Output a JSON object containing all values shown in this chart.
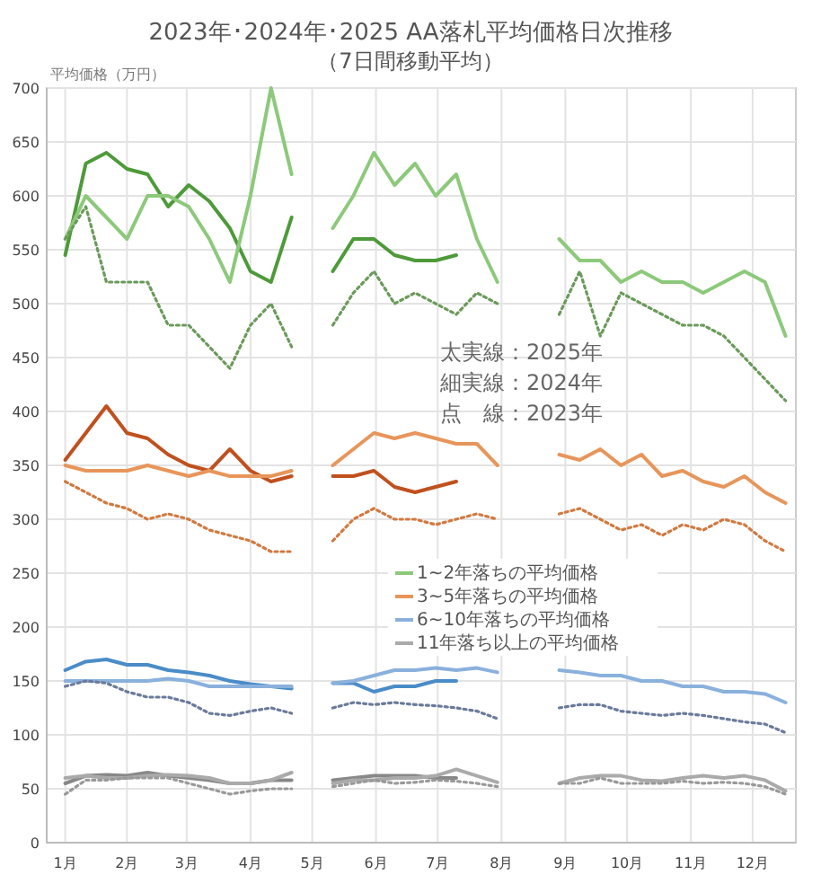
{
  "chart_data": {
    "type": "line",
    "title": "2023年･2024年･2025  AA落札平均価格日次推移",
    "subtitle": "（7日間移動平均）",
    "ylabel": "平均価格（万円）",
    "x": [
      "--01-10",
      "--01-20",
      "--01-30",
      "--02-09",
      "--02-19",
      "--03-01",
      "--03-11",
      "--03-21",
      "--03-31",
      "--04-10",
      "--04-20",
      "--04-30",
      "--05-10",
      "--05-20",
      "--05-30",
      "--06-09",
      "--06-19",
      "--06-29",
      "--07-09",
      "--07-19",
      "--07-29",
      "--08-08",
      "--08-18",
      "--08-28",
      "--09-07",
      "--09-17",
      "--09-27",
      "--10-07",
      "--10-17",
      "--10-27",
      "--11-06",
      "--11-16",
      "--11-26",
      "--12-06",
      "--12-16",
      "--12-26"
    ],
    "xlim": [
      "--01-01",
      "--12-31"
    ],
    "xticks": [
      {
        "value": "--01-10",
        "label": "1月"
      },
      {
        "value": "--02-09",
        "label": "2月"
      },
      {
        "value": "--03-10",
        "label": "3月"
      },
      {
        "value": "--04-10",
        "label": "4月"
      },
      {
        "value": "--05-10",
        "label": "5月"
      },
      {
        "value": "--06-10",
        "label": "6月"
      },
      {
        "value": "--07-10",
        "label": "7月"
      },
      {
        "value": "--08-10",
        "label": "8月"
      },
      {
        "value": "--09-10",
        "label": "9月"
      },
      {
        "value": "--10-10",
        "label": "10月"
      },
      {
        "value": "--11-10",
        "label": "11月"
      },
      {
        "value": "--12-10",
        "label": "12月"
      }
    ],
    "ylim": [
      0,
      700
    ],
    "yticks": [
      0,
      50,
      100,
      150,
      200,
      250,
      300,
      350,
      400,
      450,
      500,
      550,
      600,
      650,
      700
    ],
    "grid": true,
    "legend": "bottom right",
    "annotations": [
      "太実線：2025年",
      "細実線：2024年",
      "点　線：2023年"
    ],
    "series": [
      {
        "color": "#4e9a3a",
        "line_style": "solid",
        "values": [
          545,
          630,
          640,
          625,
          620,
          590,
          610,
          595,
          570,
          530,
          520,
          580,
          null,
          530,
          560,
          560,
          545,
          540,
          540,
          545,
          null,
          null,
          null,
          null,
          null,
          null,
          null,
          null,
          null,
          null,
          null,
          null,
          null,
          null,
          null,
          null
        ]
      },
      {
        "name": "1~2年落ちの平均価格",
        "color": "#8cc97a",
        "line_style": "solid",
        "values": [
          560,
          600,
          580,
          560,
          600,
          600,
          590,
          560,
          520,
          600,
          700,
          620,
          null,
          570,
          600,
          640,
          610,
          630,
          600,
          620,
          560,
          520,
          null,
          null,
          560,
          540,
          540,
          520,
          530,
          520,
          520,
          510,
          520,
          530,
          520,
          470
        ]
      },
      {
        "color": "#6a9a5a",
        "line_style": "dotted",
        "values": [
          560,
          590,
          520,
          520,
          520,
          480,
          480,
          460,
          440,
          480,
          500,
          460,
          null,
          480,
          510,
          530,
          500,
          510,
          500,
          490,
          510,
          500,
          null,
          null,
          490,
          530,
          470,
          510,
          500,
          490,
          480,
          480,
          470,
          450,
          430,
          410
        ]
      },
      {
        "color": "#c0501e",
        "line_style": "solid",
        "values": [
          355,
          380,
          405,
          380,
          375,
          360,
          350,
          345,
          365,
          345,
          335,
          340,
          null,
          340,
          340,
          345,
          330,
          325,
          330,
          335,
          null,
          null,
          null,
          null,
          null,
          null,
          null,
          null,
          null,
          null,
          null,
          null,
          null,
          null,
          null,
          null
        ]
      },
      {
        "name": "3~5年落ちの平均価格",
        "color": "#e8955a",
        "line_style": "solid",
        "values": [
          350,
          345,
          345,
          345,
          350,
          345,
          340,
          345,
          340,
          340,
          340,
          345,
          null,
          350,
          365,
          380,
          375,
          380,
          375,
          370,
          370,
          350,
          null,
          null,
          360,
          355,
          365,
          350,
          360,
          340,
          345,
          335,
          330,
          340,
          325,
          315
        ]
      },
      {
        "color": "#d07a40",
        "line_style": "dotted",
        "values": [
          335,
          325,
          315,
          310,
          300,
          305,
          300,
          290,
          285,
          280,
          270,
          270,
          null,
          280,
          300,
          310,
          300,
          300,
          295,
          300,
          305,
          300,
          null,
          null,
          305,
          310,
          300,
          290,
          295,
          285,
          295,
          290,
          300,
          295,
          280,
          270
        ]
      },
      {
        "color": "#4a8cc8",
        "line_style": "solid",
        "values": [
          160,
          168,
          170,
          165,
          165,
          160,
          158,
          155,
          150,
          147,
          145,
          143,
          null,
          148,
          148,
          140,
          145,
          145,
          150,
          150,
          null,
          null,
          null,
          null,
          null,
          null,
          null,
          null,
          null,
          null,
          null,
          null,
          null,
          null,
          null,
          null
        ]
      },
      {
        "name": "6~10年落ちの平均価格",
        "color": "#8ab0dc",
        "line_style": "solid",
        "values": [
          150,
          150,
          150,
          150,
          150,
          152,
          150,
          145,
          145,
          145,
          145,
          145,
          null,
          148,
          150,
          155,
          160,
          160,
          162,
          160,
          162,
          158,
          null,
          null,
          160,
          158,
          155,
          155,
          150,
          150,
          145,
          145,
          140,
          140,
          138,
          130
        ]
      },
      {
        "color": "#6a7a9a",
        "line_style": "dotted",
        "values": [
          145,
          150,
          148,
          140,
          135,
          135,
          130,
          120,
          118,
          122,
          125,
          120,
          null,
          125,
          130,
          128,
          130,
          128,
          127,
          125,
          122,
          115,
          null,
          null,
          125,
          128,
          128,
          122,
          120,
          118,
          120,
          118,
          115,
          112,
          110,
          102
        ]
      },
      {
        "color": "#888888",
        "line_style": "solid",
        "values": [
          55,
          62,
          63,
          62,
          65,
          62,
          60,
          58,
          55,
          55,
          58,
          58,
          null,
          58,
          60,
          62,
          62,
          62,
          60,
          60,
          null,
          null,
          null,
          null,
          null,
          null,
          null,
          null,
          null,
          null,
          null,
          null,
          null,
          null,
          null,
          null
        ]
      },
      {
        "name": "11年落ち以上の平均価格",
        "color": "#aaaaaa",
        "line_style": "solid",
        "values": [
          60,
          62,
          60,
          60,
          62,
          63,
          62,
          60,
          55,
          55,
          58,
          65,
          null,
          55,
          58,
          58,
          60,
          60,
          62,
          68,
          62,
          56,
          null,
          null,
          55,
          60,
          62,
          62,
          58,
          57,
          60,
          62,
          60,
          62,
          58,
          48
        ]
      },
      {
        "color": "#999999",
        "line_style": "dotted",
        "values": [
          45,
          58,
          58,
          60,
          60,
          60,
          55,
          50,
          45,
          48,
          50,
          50,
          null,
          52,
          55,
          58,
          55,
          56,
          58,
          57,
          55,
          52,
          null,
          null,
          55,
          55,
          60,
          55,
          55,
          55,
          57,
          55,
          56,
          55,
          52,
          45
        ]
      }
    ]
  }
}
